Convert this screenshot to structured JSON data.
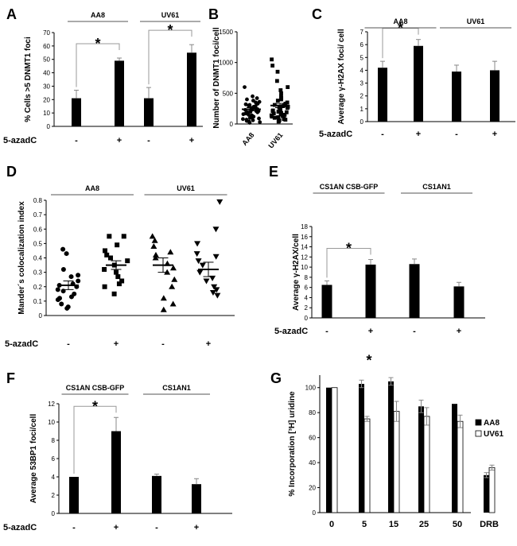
{
  "treatment_label": "5-azadC",
  "star": "*",
  "chart_data": [
    {
      "panel": "A",
      "type": "bar",
      "ylabel": "% Cells >5 DNMT1 foci",
      "ylim": [
        0,
        70
      ],
      "yticks": [
        0,
        10,
        20,
        30,
        40,
        50,
        60,
        70
      ],
      "groups": [
        "AA8",
        "UV61"
      ],
      "categories": [
        "-",
        "+",
        "-",
        "+"
      ],
      "values": [
        21,
        49,
        21,
        55
      ],
      "errors": [
        6,
        2,
        8,
        6
      ],
      "significance": [
        [
          0,
          1
        ],
        [
          2,
          3
        ]
      ]
    },
    {
      "panel": "B",
      "type": "scatter",
      "ylabel": "Number of DNMT1 foci/cell",
      "ylim": [
        0,
        1500
      ],
      "yticks": [
        0,
        500,
        1000,
        1500
      ],
      "categories": [
        "AA8",
        "UV61"
      ],
      "series": [
        {
          "values": [
            320,
            290,
            240,
            200,
            180,
            420,
            350,
            260,
            140,
            110,
            80,
            60,
            380,
            310,
            220,
            150,
            100,
            50,
            30,
            270,
            330,
            190,
            160,
            120,
            90,
            70,
            250,
            230,
            210,
            170,
            300,
            130,
            40,
            20,
            450,
            600,
            280,
            360,
            400,
            180,
            210,
            240
          ],
          "mean": 240,
          "sem": 25
        },
        {
          "values": [
            1050,
            950,
            850,
            700,
            600,
            550,
            500,
            450,
            420,
            400,
            380,
            350,
            330,
            310,
            300,
            290,
            280,
            270,
            260,
            250,
            240,
            230,
            220,
            210,
            200,
            190,
            180,
            170,
            160,
            150,
            140,
            130,
            120,
            110,
            100,
            90,
            80,
            70,
            60,
            50,
            45,
            40
          ],
          "mean": 300,
          "sem": 35
        }
      ]
    },
    {
      "panel": "C",
      "type": "bar",
      "ylabel": "Average γ-H2AX foci/ cell",
      "ylim": [
        0,
        7
      ],
      "yticks": [
        0,
        1,
        2,
        3,
        4,
        5,
        6,
        7
      ],
      "groups": [
        "AA8",
        "UV61"
      ],
      "categories": [
        "-",
        "+",
        "-",
        "+"
      ],
      "values": [
        4.2,
        5.9,
        3.9,
        4.0
      ],
      "errors": [
        0.5,
        0.5,
        0.5,
        0.7
      ],
      "significance": [
        [
          0,
          1
        ]
      ]
    },
    {
      "panel": "D",
      "type": "scatter",
      "ylabel": "Mander´s colocalization index",
      "ylim": [
        0,
        0.8
      ],
      "yticks": [
        0,
        0.1,
        0.2,
        0.3,
        0.4,
        0.5,
        0.6,
        0.7,
        0.8
      ],
      "groups": [
        "AA8",
        "UV61"
      ],
      "categories": [
        "-",
        "+",
        "-",
        "+"
      ],
      "series": [
        {
          "marker": "circle",
          "values": [
            0.46,
            0.43,
            0.32,
            0.28,
            0.27,
            0.24,
            0.22,
            0.21,
            0.2,
            0.18,
            0.17,
            0.15,
            0.13,
            0.12,
            0.11,
            0.08,
            0.06,
            0.05
          ],
          "mean": 0.21,
          "sem": 0.03
        },
        {
          "marker": "square",
          "values": [
            0.55,
            0.55,
            0.49,
            0.45,
            0.42,
            0.4,
            0.38,
            0.35,
            0.32,
            0.3,
            0.27,
            0.24,
            0.22,
            0.2,
            0.15
          ],
          "mean": 0.35,
          "sem": 0.03
        },
        {
          "marker": "triangle",
          "values": [
            0.55,
            0.52,
            0.48,
            0.44,
            0.42,
            0.4,
            0.36,
            0.33,
            0.3,
            0.25,
            0.2,
            0.12,
            0.08,
            0.04
          ],
          "mean": 0.35,
          "sem": 0.05
        },
        {
          "marker": "triangle-down",
          "values": [
            0.79,
            0.6,
            0.5,
            0.43,
            0.41,
            0.38,
            0.35,
            0.3,
            0.26,
            0.24,
            0.2,
            0.18,
            0.16,
            0.14
          ],
          "mean": 0.32,
          "sem": 0.05
        }
      ]
    },
    {
      "panel": "E",
      "type": "bar",
      "ylabel": "Average γ-H2AX/cell",
      "ylim": [
        0,
        18
      ],
      "yticks": [
        0,
        2,
        4,
        6,
        8,
        10,
        12,
        14,
        16,
        18
      ],
      "groups": [
        "CS1AN CSB-GFP",
        "CS1AN1"
      ],
      "categories": [
        "-",
        "+",
        "-",
        "+"
      ],
      "values": [
        6.5,
        10.5,
        10.6,
        6.2
      ],
      "errors": [
        0.8,
        1.0,
        1.0,
        0.8
      ],
      "significance": [
        [
          0,
          1
        ]
      ]
    },
    {
      "panel": "F",
      "type": "bar",
      "ylabel": "Average 53BP1 foci/cell",
      "ylim": [
        0,
        12
      ],
      "yticks": [
        0,
        2,
        4,
        6,
        8,
        10,
        12
      ],
      "groups": [
        "CS1AN CSB-GFP",
        "CS1AN1"
      ],
      "categories": [
        "-",
        "+",
        "-",
        "+"
      ],
      "values": [
        4.0,
        9.0,
        4.1,
        3.2
      ],
      "errors": [
        0.0,
        1.5,
        0.2,
        0.6
      ],
      "significance": [
        [
          0,
          1
        ]
      ]
    },
    {
      "panel": "G",
      "type": "bar",
      "ylabel": "% Incorporation [³H] uridine",
      "ylim": [
        0,
        110
      ],
      "yticks": [
        0,
        20,
        40,
        60,
        80,
        100
      ],
      "categories": [
        "0",
        "5",
        "15",
        "25",
        "50",
        "DRB"
      ],
      "series": [
        {
          "name": "AA8",
          "color": "#000000",
          "values": [
            100,
            103,
            105,
            85,
            87,
            30
          ],
          "errors": [
            0,
            3,
            3,
            5,
            0,
            2
          ]
        },
        {
          "name": "UV61",
          "color": "#ffffff",
          "values": [
            100,
            75,
            81,
            77,
            73,
            36
          ],
          "errors": [
            0,
            2,
            8,
            7,
            5,
            2
          ]
        }
      ],
      "significance_at": 1
    }
  ]
}
